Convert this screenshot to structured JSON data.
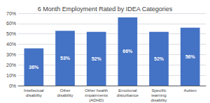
{
  "chart_data": {
    "type": "bar",
    "title": "6 Month Employment Rated by IDEA Categories",
    "categories": [
      "Intellectual\ndisability",
      "Other\ndisability",
      "Other health\nimpairments\n(ADHD)",
      "Emotional\ndisturbance",
      "Specific\nlearning\ndisability",
      "Autism"
    ],
    "values": [
      36,
      53,
      52,
      66,
      52,
      56
    ],
    "value_labels": [
      "36%",
      "53%",
      "52%",
      "66%",
      "52%",
      "56%"
    ],
    "data_labels": true,
    "color": "#4472C4",
    "ylim": [
      0,
      70
    ],
    "yticks": [
      {
        "value": 0,
        "label": "0%"
      },
      {
        "value": 10,
        "label": "10%"
      },
      {
        "value": 20,
        "label": "20%"
      },
      {
        "value": 30,
        "label": "30%"
      },
      {
        "value": 40,
        "label": "40%"
      },
      {
        "value": 50,
        "label": "50%"
      },
      {
        "value": 60,
        "label": "60%"
      },
      {
        "value": 70,
        "label": "70%"
      }
    ],
    "grid": true
  }
}
